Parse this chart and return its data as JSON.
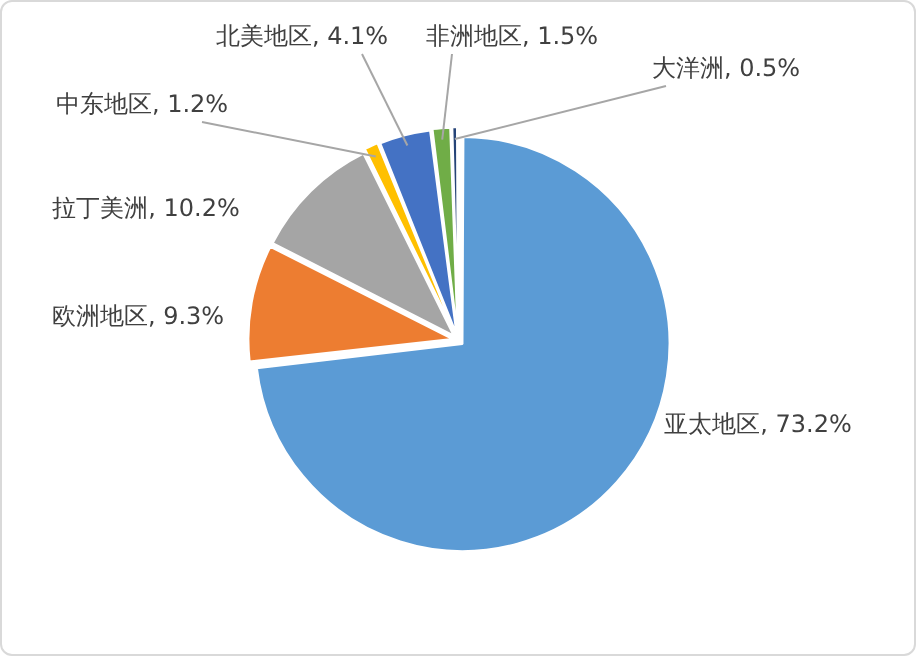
{
  "chart_data": {
    "type": "pie",
    "categories": [
      "亚太地区",
      "欧洲地区",
      "拉丁美洲",
      "中东地区",
      "北美地区",
      "非洲地区",
      "大洋洲"
    ],
    "values": [
      73.2,
      9.3,
      10.2,
      1.2,
      4.1,
      1.5,
      0.5
    ],
    "colors": [
      "#5b9bd5",
      "#ed7d31",
      "#a5a5a5",
      "#ffc000",
      "#4472c4",
      "#70ad47",
      "#264478"
    ],
    "value_labels": [
      "73.2%",
      "9.3%",
      "10.2%",
      "1.2%",
      "4.1%",
      "1.5%",
      "0.5%"
    ],
    "legend": false
  }
}
